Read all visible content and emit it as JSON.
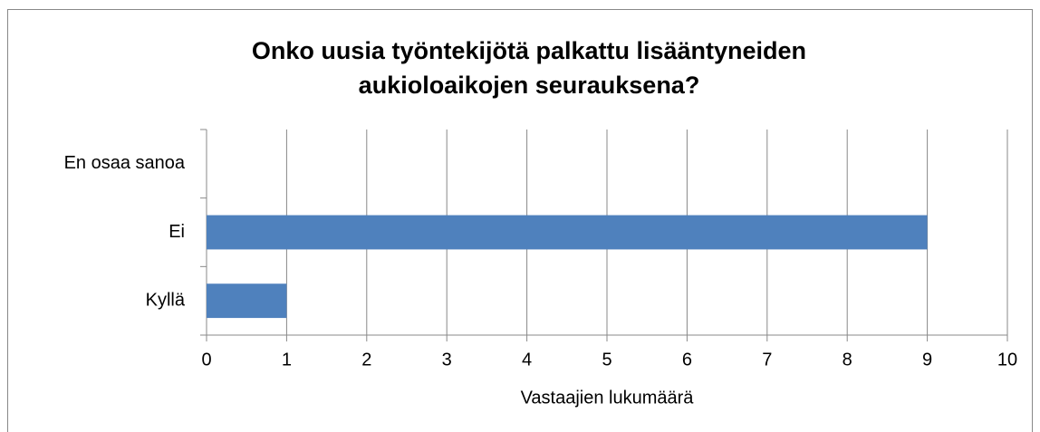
{
  "chart_data": {
    "type": "bar",
    "orientation": "horizontal",
    "title": [
      "Onko uusia työntekijötä palkattu lisääntyneiden",
      "aukioloaikojen seurauksena?"
    ],
    "categories": [
      "Kyllä",
      "Ei",
      "En osaa sanoa"
    ],
    "values": [
      1,
      9,
      0
    ],
    "color": "#4f81bd",
    "xlabel": "Vastaajien lukumäärä",
    "xlim": [
      0,
      10
    ],
    "xticks": [
      0,
      1,
      2,
      3,
      4,
      5,
      6,
      7,
      8,
      9,
      10
    ],
    "grid": true
  }
}
